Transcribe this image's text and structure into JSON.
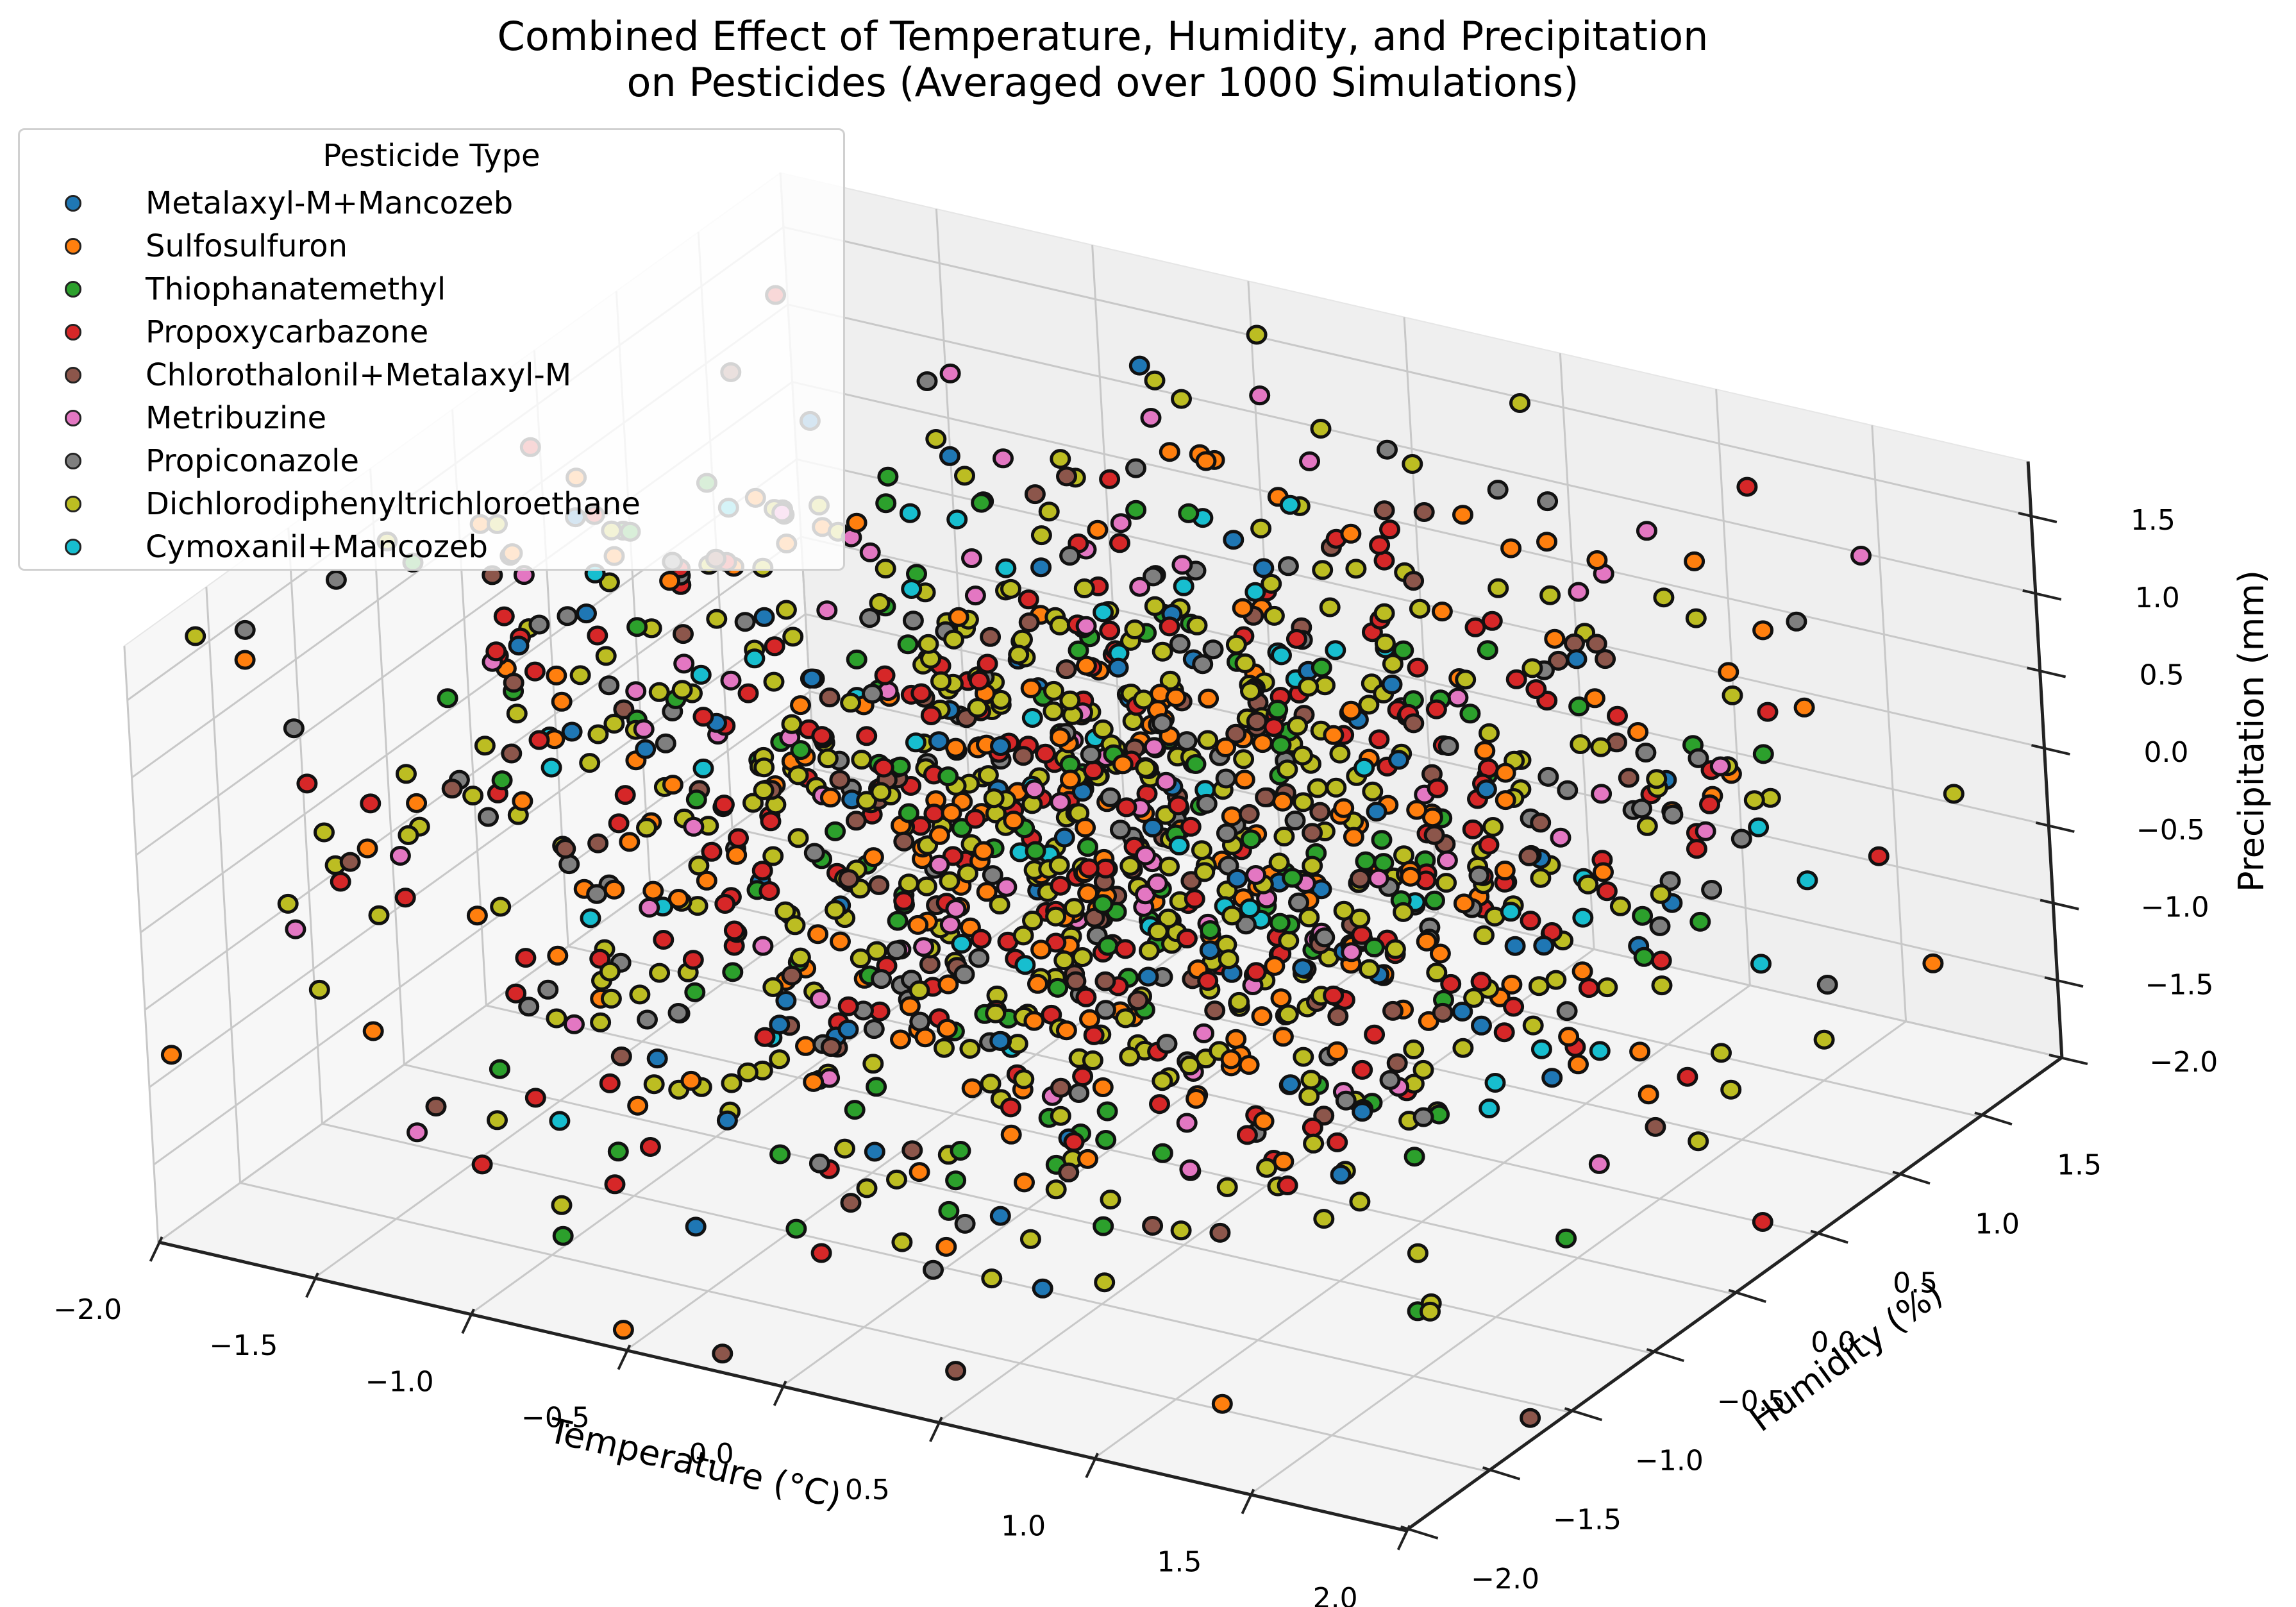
{
  "chart_data": {
    "type": "scatter3d",
    "title": "Combined Effect of Temperature, Humidity, and Precipitation\non Pesticides (Averaged over 1000 Simulations)",
    "title_lines": [
      "Combined Effect of Temperature, Humidity, and Precipitation",
      "on Pesticides (Averaged over 1000 Simulations)"
    ],
    "xlabel": "Temperature (°C)",
    "ylabel": "Humidity (%)",
    "zlabel": "Precipitation (mm)",
    "xlim": [
      -2.0,
      2.0
    ],
    "ylim": [
      -2.0,
      2.0
    ],
    "zlim": [
      -2.0,
      1.85
    ],
    "xticks": [
      "−2.0",
      "−1.5",
      "−1.0",
      "−0.5",
      "0.0",
      "0.5",
      "1.0",
      "1.5",
      "2.0"
    ],
    "yticks": [
      "−2.0",
      "−1.5",
      "−1.0",
      "−0.5",
      "0.0",
      "0.5",
      "1.0",
      "1.5"
    ],
    "zticks": [
      "−2.0",
      "−1.5",
      "−1.0",
      "−0.5",
      "0.0",
      "0.5",
      "1.0",
      "1.5"
    ],
    "grid": true,
    "legend_position": "upper left",
    "legend_title": "Pesticide Type",
    "series": [
      {
        "name": "Metalaxyl-M+Mancozeb",
        "color": "#1f77b4",
        "count": 75
      },
      {
        "name": "Sulfosulfuron",
        "color": "#ff7f0e",
        "count": 230
      },
      {
        "name": "Thiophanatemethyl",
        "color": "#2ca02c",
        "count": 140
      },
      {
        "name": "Propoxycarbazone",
        "color": "#d62728",
        "count": 230
      },
      {
        "name": "Chlorothalonil+Metalaxyl-M",
        "color": "#8c564b",
        "count": 110
      },
      {
        "name": "Metribuzine",
        "color": "#e377c2",
        "count": 90
      },
      {
        "name": "Propiconazole",
        "color": "#7f7f7f",
        "count": 130
      },
      {
        "name": "Dichlorodiphenyltrichloroethane",
        "color": "#bcbd22",
        "count": 420
      },
      {
        "name": "Cymoxanil+Mancozeb",
        "color": "#17becf",
        "count": 55
      }
    ],
    "distribution_note": "Points are standard-normal-like values clipped to roughly [-2, 2] on each axis; individual coordinates not legible."
  },
  "legend": {
    "title": "Pesticide Type",
    "items": [
      {
        "label": "Metalaxyl-M+Mancozeb",
        "color": "#1f77b4"
      },
      {
        "label": "Sulfosulfuron",
        "color": "#ff7f0e"
      },
      {
        "label": "Thiophanatemethyl",
        "color": "#2ca02c"
      },
      {
        "label": "Propoxycarbazone",
        "color": "#d62728"
      },
      {
        "label": "Chlorothalonil+Metalaxyl-M",
        "color": "#8c564b"
      },
      {
        "label": "Metribuzine",
        "color": "#e377c2"
      },
      {
        "label": "Propiconazole",
        "color": "#7f7f7f"
      },
      {
        "label": "Dichlorodiphenyltrichloroethane",
        "color": "#bcbd22"
      },
      {
        "label": "Cymoxanil+Mancozeb",
        "color": "#17becf"
      }
    ]
  }
}
